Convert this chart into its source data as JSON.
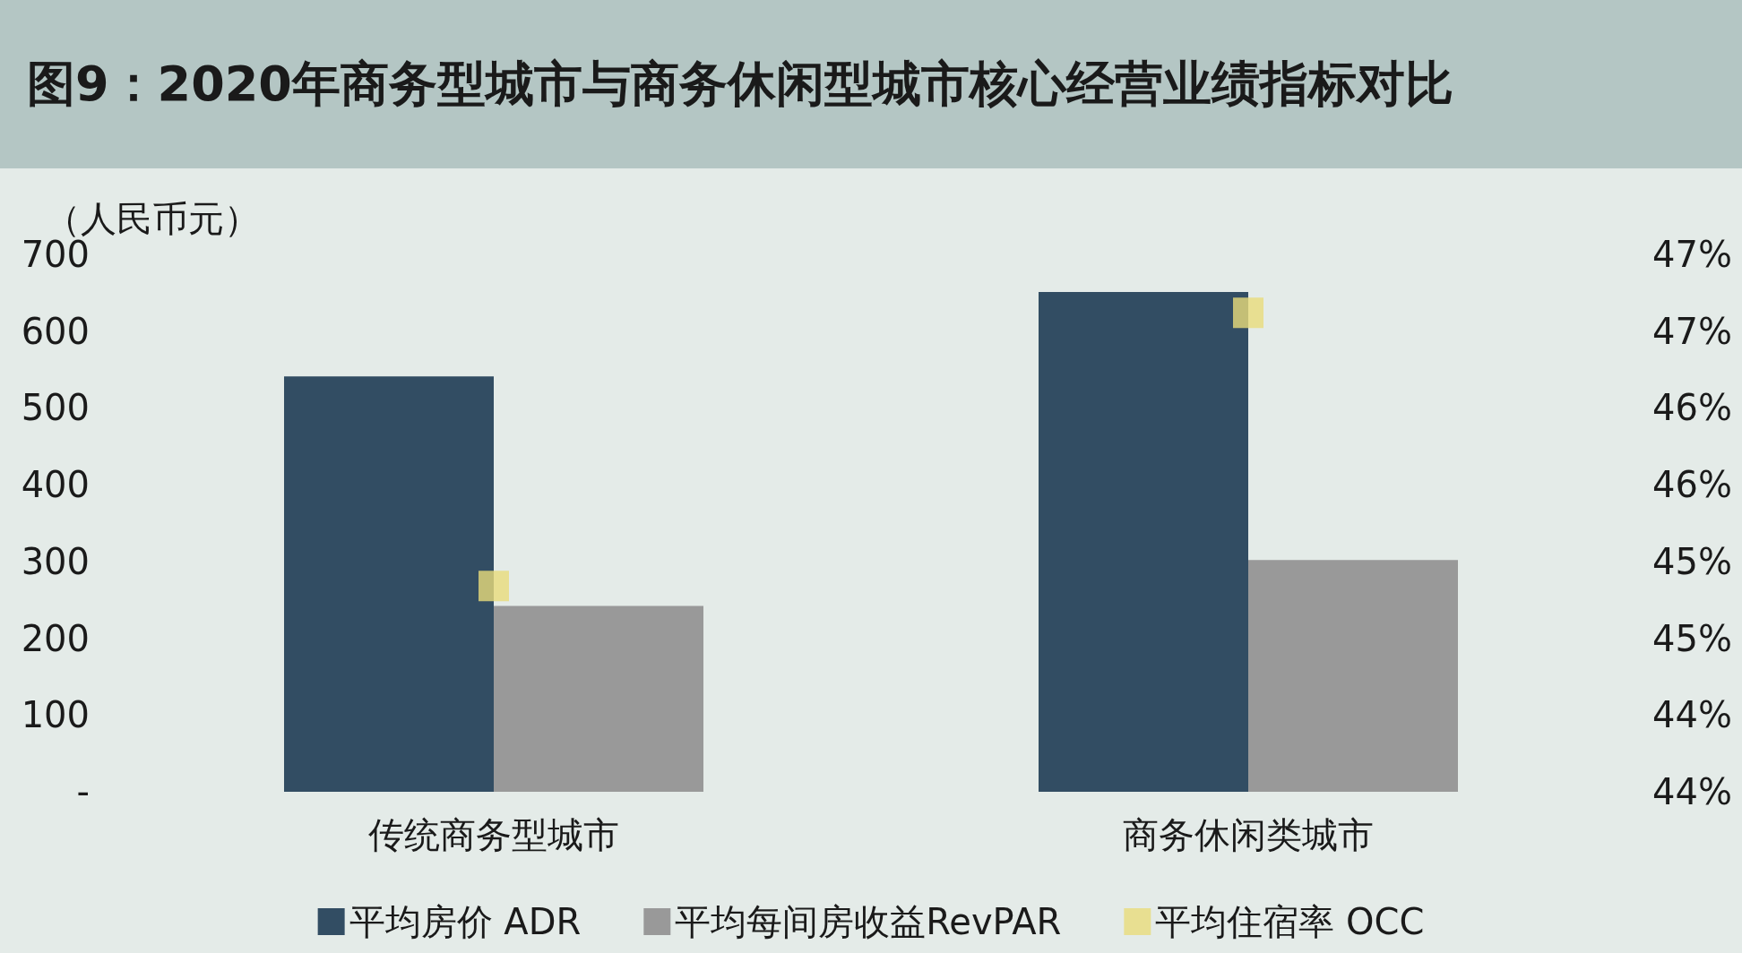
{
  "chart_data": {
    "type": "bar",
    "title": "图9：2020年商务型城市与商务休闲型城市核心经营业绩指标对比",
    "ylabel": "（人民币元）",
    "categories": [
      "传统商务型城市",
      "商务休闲类城市"
    ],
    "series": [
      {
        "name": "平均房价 ADR",
        "color": "#324d63",
        "values": [
          541,
          651
        ]
      },
      {
        "name": "平均每间房收益RevPAR",
        "color": "#999999",
        "values": [
          242,
          302
        ]
      },
      {
        "name": "平均住宿率 OCC",
        "color": "#e8dc7a",
        "values": [
          44.84,
          46.62
        ],
        "type": "scatter",
        "axis": "y2",
        "x": [
          "传统商务型城市",
          "商务休闲类城市"
        ]
      }
    ],
    "ylim": [
      0,
      700
    ],
    "yticks": [
      {
        "value": 0,
        "label": "-"
      },
      100,
      200,
      300,
      400,
      500,
      600,
      700
    ],
    "y2lim": [
      43.5,
      47
    ],
    "y2ticks": [
      {
        "value": 43.5,
        "label": "44%"
      },
      {
        "value": 44,
        "label": "44%"
      },
      {
        "value": 44.5,
        "label": "45%"
      },
      {
        "value": 45,
        "label": "45%"
      },
      {
        "value": 45.5,
        "label": "46%"
      },
      {
        "value": 46,
        "label": "46%"
      },
      {
        "value": 46.5,
        "label": "47%"
      },
      {
        "value": 47,
        "label": "47%"
      }
    ],
    "marker": "square",
    "grid": false,
    "legend": "bottom"
  }
}
